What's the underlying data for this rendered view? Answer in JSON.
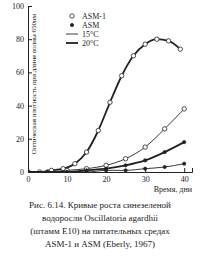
{
  "chart_data": {
    "type": "line",
    "x_label": "Время, дни",
    "y_label": "Оптическая плотность при длине волны 650нм",
    "caption": [
      "Рис. 6.14. Кривые роста синезеленой",
      "водоросли Oscillatoria agardhii",
      "(штамм E10) на питательных средах",
      "ASM-1 и ASM (Eberly, 1967)"
    ],
    "xlim": [
      0,
      42
    ],
    "xticks": [
      0,
      10,
      20,
      30,
      40
    ],
    "ylim": [
      0,
      100
    ],
    "yticks": [
      0,
      20,
      40,
      60,
      80,
      100
    ],
    "grid": false,
    "legend": "top-left",
    "legend_entries": [
      {
        "label": "ASM-1",
        "marker": "circle-open"
      },
      {
        "label": "ASM",
        "marker": "circle-filled"
      },
      {
        "label": "15°C",
        "line_style": "thin"
      },
      {
        "label": "20°C",
        "line_style": "thick"
      }
    ],
    "series": [
      {
        "marker": "circle-open",
        "line_style": "thick",
        "color": "#222222",
        "x": [
          0,
          3,
          6,
          9,
          12,
          15,
          18,
          21,
          24,
          27,
          30,
          33,
          36,
          39
        ],
        "values": [
          0,
          0,
          1,
          2,
          5,
          12,
          25,
          42,
          58,
          70,
          77,
          80,
          79,
          74
        ]
      },
      {
        "marker": "circle-open",
        "line_style": "thin",
        "color": "#222222",
        "x": [
          0,
          5,
          10,
          15,
          20,
          25,
          30,
          35,
          40
        ],
        "values": [
          0,
          0,
          1,
          2,
          4,
          8,
          15,
          26,
          38
        ]
      },
      {
        "marker": "circle-filled",
        "line_style": "thick",
        "color": "#222222",
        "x": [
          0,
          5,
          10,
          15,
          20,
          25,
          30,
          35,
          40
        ],
        "values": [
          0,
          0,
          0,
          1,
          2,
          4,
          7,
          12,
          18
        ]
      },
      {
        "marker": "circle-filled",
        "line_style": "thin",
        "color": "#222222",
        "x": [
          0,
          5,
          10,
          15,
          20,
          25,
          30,
          35,
          40
        ],
        "values": [
          0,
          0,
          0,
          0,
          1,
          1,
          2,
          3,
          5
        ]
      }
    ]
  }
}
